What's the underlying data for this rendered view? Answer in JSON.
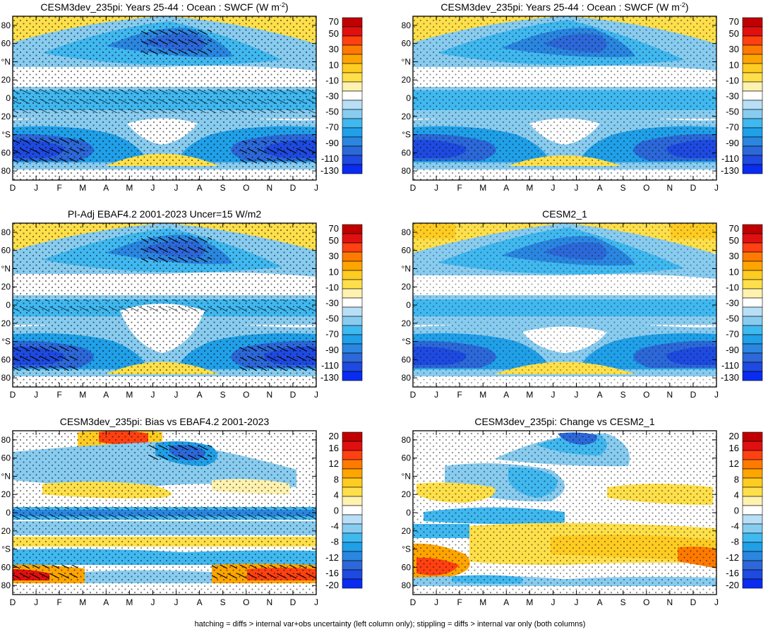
{
  "footnote": "hatching = diffs > internal var+obs uncertainty (left column only); stippling = diffs > internal var only (both columns)",
  "shared": {
    "month_labels": [
      "D",
      "J",
      "F",
      "M",
      "A",
      "M",
      "J",
      "J",
      "A",
      "S",
      "O",
      "N",
      "D",
      "J"
    ],
    "lat_labels": [
      "80",
      "60",
      "°N",
      "20",
      "0",
      "20",
      "°S",
      "60",
      "80"
    ]
  },
  "colors": {
    "abs_scale": [
      "#0a2cf0",
      "#1e4ae0",
      "#2c68d8",
      "#2a86e0",
      "#20a0e8",
      "#40b8f0",
      "#88ccf0",
      "#b8dff5",
      "#ffffff",
      "#fff2b0",
      "#ffe04a",
      "#ffcc22",
      "#ffa500",
      "#ff7a00",
      "#ff4010",
      "#e01010",
      "#c00000"
    ],
    "bias_scale": [
      "#0a2cf0",
      "#1e4ae0",
      "#2c68d8",
      "#2a86e0",
      "#20a0e8",
      "#40b8f0",
      "#88ccf0",
      "#b8dff5",
      "#ffffff",
      "#fff2b0",
      "#ffe04a",
      "#ffcc22",
      "#ffa500",
      "#ff7a00",
      "#ff4010",
      "#e01010",
      "#c00000"
    ]
  },
  "chart_data": [
    {
      "type": "heatmap",
      "title": "CESM3dev_235pi: Years 25-44 : Ocean : SWCF (W m",
      "title_sup": "-2",
      "title_end": ")",
      "x": [
        "D",
        "J",
        "F",
        "M",
        "A",
        "M",
        "J",
        "J",
        "A",
        "S",
        "O",
        "N",
        "D",
        "J"
      ],
      "ylim": [
        -90,
        90
      ],
      "colorbar": [
        "70",
        "50",
        "30",
        "10",
        "-10",
        "-30",
        "-50",
        "-70",
        "-90",
        "-110",
        "-130"
      ],
      "hatching": true,
      "stippling": true
    },
    {
      "type": "heatmap",
      "title": "CESM3dev_235pi: Years 25-44 : Ocean : SWCF (W m",
      "title_sup": "-2",
      "title_end": ")",
      "x": [
        "D",
        "J",
        "F",
        "M",
        "A",
        "M",
        "J",
        "J",
        "A",
        "S",
        "O",
        "N",
        "D",
        "J"
      ],
      "ylim": [
        -90,
        90
      ],
      "colorbar": [
        "70",
        "50",
        "30",
        "10",
        "-10",
        "-30",
        "-50",
        "-70",
        "-90",
        "-110",
        "-130"
      ],
      "hatching": false,
      "stippling": true
    },
    {
      "type": "heatmap",
      "title": "PI-Adj EBAF4.2 2001-2023 Uncer=15 W/m2",
      "x": [
        "D",
        "J",
        "F",
        "M",
        "A",
        "M",
        "J",
        "J",
        "A",
        "S",
        "O",
        "N",
        "D",
        "J"
      ],
      "ylim": [
        -90,
        90
      ],
      "colorbar": [
        "70",
        "50",
        "30",
        "10",
        "-10",
        "-30",
        "-50",
        "-70",
        "-90",
        "-110",
        "-130"
      ],
      "hatching": true,
      "stippling": true
    },
    {
      "type": "heatmap",
      "title": "CESM2_1",
      "x": [
        "D",
        "J",
        "F",
        "M",
        "A",
        "M",
        "J",
        "J",
        "A",
        "S",
        "O",
        "N",
        "D",
        "J"
      ],
      "ylim": [
        -90,
        90
      ],
      "colorbar": [
        "70",
        "50",
        "30",
        "10",
        "-10",
        "-30",
        "-50",
        "-70",
        "-90",
        "-110",
        "-130"
      ],
      "hatching": false,
      "stippling": true
    },
    {
      "type": "heatmap",
      "title": "CESM3dev_235pi: Bias vs EBAF4.2 2001-2023",
      "x": [
        "D",
        "J",
        "F",
        "M",
        "A",
        "M",
        "J",
        "J",
        "A",
        "S",
        "O",
        "N",
        "D",
        "J"
      ],
      "ylim": [
        -90,
        90
      ],
      "colorbar": [
        "20",
        "16",
        "12",
        "8",
        "4",
        "0",
        "-4",
        "-8",
        "-12",
        "-16",
        "-20"
      ],
      "hatching": true,
      "stippling": true
    },
    {
      "type": "heatmap",
      "title": "CESM3dev_235pi: Change vs CESM2_1",
      "x": [
        "D",
        "J",
        "F",
        "M",
        "A",
        "M",
        "J",
        "J",
        "A",
        "S",
        "O",
        "N",
        "D",
        "J"
      ],
      "ylim": [
        -90,
        90
      ],
      "colorbar": [
        "20",
        "16",
        "12",
        "8",
        "4",
        "0",
        "-4",
        "-8",
        "-12",
        "-16",
        "-20"
      ],
      "hatching": false,
      "stippling": true
    }
  ]
}
